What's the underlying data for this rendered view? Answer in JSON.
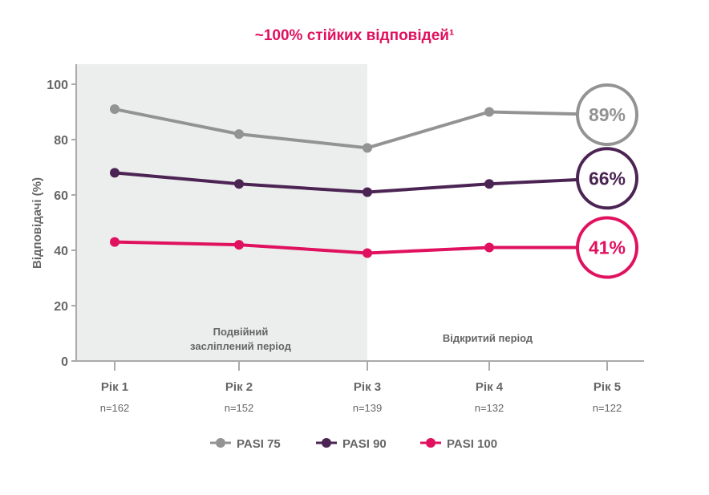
{
  "chart_data": {
    "type": "line",
    "title": "~100% стійких відповідей¹",
    "ylabel": "Відповідачі (%)",
    "xlabel": "",
    "ylim": [
      0,
      100
    ],
    "yticks": [
      0,
      20,
      40,
      60,
      80,
      100
    ],
    "grid": false,
    "categories": [
      "Рік 1",
      "Рік 2",
      "Рік 3",
      "Рік 4",
      "Рік 5"
    ],
    "n_labels": [
      "n=162",
      "n=152",
      "n=139",
      "n=132",
      "n=122"
    ],
    "periods": [
      {
        "label": "Подвійний засліплений період",
        "from": "Рік 1",
        "to": "Рік 3",
        "shaded": true
      },
      {
        "label": "Відкритий період",
        "from": "Рік 3",
        "to": "Рік 5",
        "shaded": false
      }
    ],
    "series": [
      {
        "name": "PASI 75",
        "color": "#939393",
        "values": [
          91,
          82,
          77,
          90,
          89
        ],
        "end_label": "89%"
      },
      {
        "name": "PASI 90",
        "color": "#4b2453",
        "values": [
          68,
          64,
          61,
          64,
          66
        ],
        "end_label": "66%"
      },
      {
        "name": "PASI 100",
        "color": "#e0115f",
        "values": [
          43,
          42,
          39,
          41,
          41
        ],
        "end_label": "41%"
      }
    ],
    "legend_position": "bottom",
    "title_color": "#e0115f",
    "shade_color": "#eceded"
  }
}
